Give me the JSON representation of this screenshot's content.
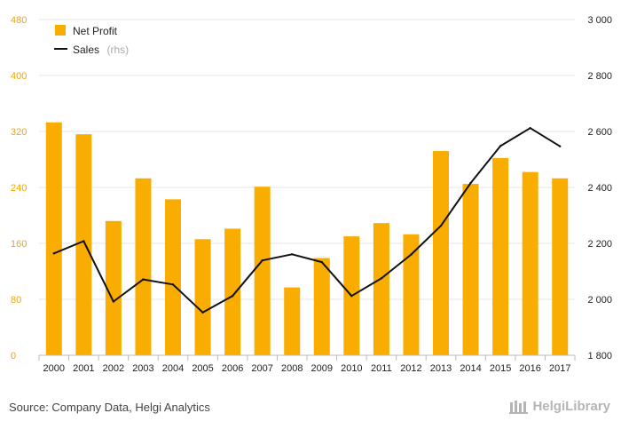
{
  "chart_data": {
    "type": "bar+line",
    "categories": [
      "2000",
      "2001",
      "2002",
      "2003",
      "2004",
      "2005",
      "2006",
      "2007",
      "2008",
      "2009",
      "2010",
      "2011",
      "2012",
      "2013",
      "2014",
      "2015",
      "2016",
      "2017"
    ],
    "series": [
      {
        "name": "Net Profit",
        "type": "bar",
        "axis": "left",
        "color": "#f9ad00",
        "values": [
          333,
          316,
          192,
          253,
          223,
          166,
          181,
          241,
          97,
          139,
          170,
          189,
          173,
          292,
          245,
          282,
          262,
          253
        ]
      },
      {
        "name": "Sales",
        "name_suffix": "(rhs)",
        "type": "line",
        "axis": "right",
        "color": "#111111",
        "values": [
          2164,
          2208,
          1992,
          2071,
          2053,
          1953,
          2012,
          2139,
          2161,
          2133,
          2012,
          2075,
          2160,
          2263,
          2416,
          2548,
          2612,
          2547
        ]
      }
    ],
    "y_left": {
      "min": 0,
      "max": 480,
      "ticks": [
        0,
        80,
        160,
        240,
        320,
        400,
        480
      ],
      "tick_labels": [
        "0",
        "80",
        "160",
        "240",
        "320",
        "400",
        "480"
      ]
    },
    "y_right": {
      "min": 1800,
      "max": 3000,
      "ticks": [
        1800,
        2000,
        2200,
        2400,
        2600,
        2800,
        3000
      ],
      "tick_labels": [
        "1 800",
        "2 000",
        "2 200",
        "2 400",
        "2 600",
        "2 800",
        "3 000"
      ]
    },
    "grid": true,
    "legend_position": "top-left"
  },
  "footer": {
    "source": "Source: Company Data, Helgi Analytics",
    "brand": "HelgiLibrary"
  },
  "colors": {
    "bar": "#f9ad00",
    "line": "#111111",
    "left_axis": "#f0a500",
    "grid": "#e6e6e6"
  }
}
